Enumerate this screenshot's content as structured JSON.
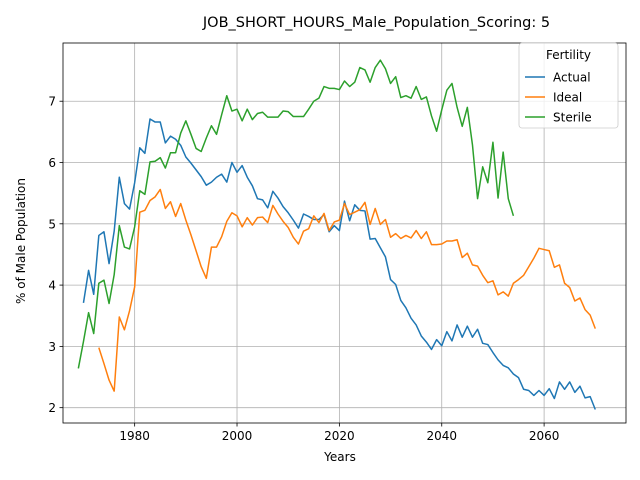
{
  "chart_data": {
    "type": "line",
    "title": "JOB_SHORT_HOURS_Male_Population_Scoring: 5",
    "xlabel": "Years",
    "ylabel": "% of Male Population",
    "xlim": [
      1966,
      2076
    ],
    "ylim": [
      1.75,
      7.95
    ],
    "xticks": [
      1980,
      2000,
      2020,
      2040,
      2060
    ],
    "yticks": [
      2,
      3,
      4,
      5,
      6,
      7
    ],
    "grid": true,
    "legend": {
      "title": "Fertility",
      "placement": "top-right"
    },
    "series": [
      {
        "name": "Actual",
        "color": "#1f77b4",
        "x": [
          1970,
          1971,
          1972,
          1973,
          1974,
          1975,
          1976,
          1977,
          1978,
          1979,
          1980,
          1981,
          1982,
          1983,
          1984,
          1985,
          1986,
          1987,
          1988,
          1989,
          1990,
          1991,
          1992,
          1993,
          1994,
          1995,
          1996,
          1997,
          1998,
          1999,
          2000,
          2001,
          2002,
          2003,
          2004,
          2005,
          2006,
          2007,
          2008,
          2009,
          2010,
          2011,
          2012,
          2013,
          2014,
          2015,
          2016,
          2017,
          2018,
          2019,
          2020,
          2021,
          2022,
          2023,
          2024,
          2025,
          2026,
          2027,
          2028,
          2029,
          2030,
          2031,
          2032,
          2033,
          2034,
          2035,
          2036,
          2037,
          2038,
          2039,
          2040,
          2041,
          2042,
          2043,
          2044,
          2045,
          2046,
          2047,
          2048,
          2049,
          2050,
          2051,
          2052,
          2053,
          2054,
          2055,
          2056,
          2057,
          2058,
          2059,
          2060,
          2061,
          2062,
          2063,
          2064,
          2065,
          2066,
          2067,
          2068,
          2069,
          2070
        ],
        "values": [
          3.71,
          4.24,
          3.85,
          4.81,
          4.87,
          4.35,
          4.88,
          5.76,
          5.33,
          5.24,
          5.67,
          6.24,
          6.15,
          6.71,
          6.66,
          6.66,
          6.32,
          6.43,
          6.38,
          6.28,
          6.09,
          5.99,
          5.88,
          5.77,
          5.63,
          5.68,
          5.76,
          5.81,
          5.68,
          6.0,
          5.84,
          5.95,
          5.76,
          5.62,
          5.41,
          5.39,
          5.26,
          5.53,
          5.42,
          5.28,
          5.18,
          5.06,
          4.93,
          5.16,
          5.12,
          5.07,
          5.07,
          5.15,
          4.87,
          4.97,
          4.89,
          5.37,
          5.05,
          5.31,
          5.22,
          5.21,
          4.75,
          4.76,
          4.61,
          4.46,
          4.09,
          4.01,
          3.75,
          3.63,
          3.46,
          3.35,
          3.17,
          3.07,
          2.95,
          3.11,
          3.01,
          3.24,
          3.09,
          3.35,
          3.15,
          3.33,
          3.15,
          3.28,
          3.05,
          3.03,
          2.9,
          2.78,
          2.69,
          2.65,
          2.55,
          2.49,
          2.3,
          2.28,
          2.2,
          2.28,
          2.2,
          2.31,
          2.15,
          2.42,
          2.3,
          2.42,
          2.25,
          2.35,
          2.16,
          2.18,
          1.97
        ]
      },
      {
        "name": "Ideal",
        "color": "#ff7f0e",
        "x": [
          1973,
          1974,
          1975,
          1976,
          1977,
          1978,
          1979,
          1980,
          1981,
          1982,
          1983,
          1984,
          1985,
          1986,
          1987,
          1988,
          1989,
          1990,
          1991,
          1992,
          1993,
          1994,
          1995,
          1996,
          1997,
          1998,
          1999,
          2000,
          2001,
          2002,
          2003,
          2004,
          2005,
          2006,
          2007,
          2008,
          2009,
          2010,
          2011,
          2012,
          2013,
          2014,
          2015,
          2016,
          2017,
          2018,
          2019,
          2020,
          2021,
          2022,
          2023,
          2024,
          2025,
          2026,
          2027,
          2028,
          2029,
          2030,
          2031,
          2032,
          2033,
          2034,
          2035,
          2036,
          2037,
          2038,
          2039,
          2040,
          2041,
          2042,
          2043,
          2044,
          2045,
          2046,
          2047,
          2048,
          2049,
          2050,
          2051,
          2052,
          2053,
          2054,
          2055,
          2056,
          2057,
          2058,
          2059,
          2060,
          2061,
          2062,
          2063,
          2064,
          2065,
          2066,
          2067,
          2068,
          2069,
          2070
        ],
        "values": [
          2.98,
          2.72,
          2.45,
          2.27,
          3.48,
          3.27,
          3.58,
          3.97,
          5.19,
          5.22,
          5.38,
          5.44,
          5.56,
          5.25,
          5.36,
          5.12,
          5.33,
          5.06,
          4.82,
          4.56,
          4.3,
          4.11,
          4.62,
          4.62,
          4.79,
          5.04,
          5.18,
          5.13,
          4.95,
          5.1,
          4.98,
          5.1,
          5.11,
          5.02,
          5.3,
          5.16,
          5.04,
          4.94,
          4.78,
          4.67,
          4.88,
          4.92,
          5.13,
          5.02,
          5.17,
          4.89,
          5.03,
          5.06,
          5.33,
          5.15,
          5.19,
          5.23,
          5.35,
          4.99,
          5.25,
          4.99,
          5.07,
          4.78,
          4.84,
          4.76,
          4.81,
          4.77,
          4.89,
          4.76,
          4.87,
          4.66,
          4.66,
          4.67,
          4.72,
          4.72,
          4.74,
          4.45,
          4.52,
          4.33,
          4.31,
          4.16,
          4.04,
          4.07,
          3.84,
          3.89,
          3.82,
          4.03,
          4.09,
          4.16,
          4.3,
          4.44,
          4.6,
          4.58,
          4.56,
          4.29,
          4.33,
          4.03,
          3.96,
          3.74,
          3.79,
          3.6,
          3.51,
          3.29
        ]
      },
      {
        "name": "Sterile",
        "color": "#2ca02c",
        "x": [
          1969,
          1970,
          1971,
          1972,
          1973,
          1974,
          1975,
          1976,
          1977,
          1978,
          1979,
          1980,
          1981,
          1982,
          1983,
          1984,
          1985,
          1986,
          1987,
          1988,
          1989,
          1990,
          1991,
          1992,
          1993,
          1994,
          1995,
          1996,
          1997,
          1998,
          1999,
          2000,
          2001,
          2002,
          2003,
          2004,
          2005,
          2006,
          2007,
          2008,
          2009,
          2010,
          2011,
          2012,
          2013,
          2014,
          2015,
          2016,
          2017,
          2018,
          2019,
          2020,
          2021,
          2022,
          2023,
          2024,
          2025,
          2026,
          2027,
          2028,
          2029,
          2030,
          2031,
          2032,
          2033,
          2034,
          2035,
          2036,
          2037,
          2038,
          2039,
          2040,
          2041,
          2042,
          2043,
          2044,
          2045,
          2046,
          2047,
          2048,
          2049,
          2050,
          2051,
          2052,
          2053,
          2054
        ],
        "values": [
          2.64,
          3.08,
          3.55,
          3.21,
          4.03,
          4.08,
          3.7,
          4.17,
          4.97,
          4.62,
          4.59,
          4.95,
          5.54,
          5.48,
          6.01,
          6.02,
          6.08,
          5.91,
          6.16,
          6.16,
          6.48,
          6.68,
          6.46,
          6.23,
          6.18,
          6.4,
          6.6,
          6.46,
          6.78,
          7.09,
          6.84,
          6.87,
          6.68,
          6.87,
          6.7,
          6.8,
          6.82,
          6.74,
          6.74,
          6.74,
          6.84,
          6.83,
          6.75,
          6.75,
          6.75,
          6.87,
          7.0,
          7.05,
          7.24,
          7.21,
          7.21,
          7.19,
          7.33,
          7.24,
          7.31,
          7.55,
          7.51,
          7.31,
          7.55,
          7.67,
          7.53,
          7.29,
          7.4,
          7.06,
          7.09,
          7.05,
          7.24,
          7.03,
          7.07,
          6.76,
          6.51,
          6.86,
          7.18,
          7.29,
          6.9,
          6.59,
          6.9,
          6.29,
          5.41,
          5.93,
          5.67,
          6.33,
          5.42,
          6.17,
          5.41,
          5.13
        ]
      }
    ]
  }
}
